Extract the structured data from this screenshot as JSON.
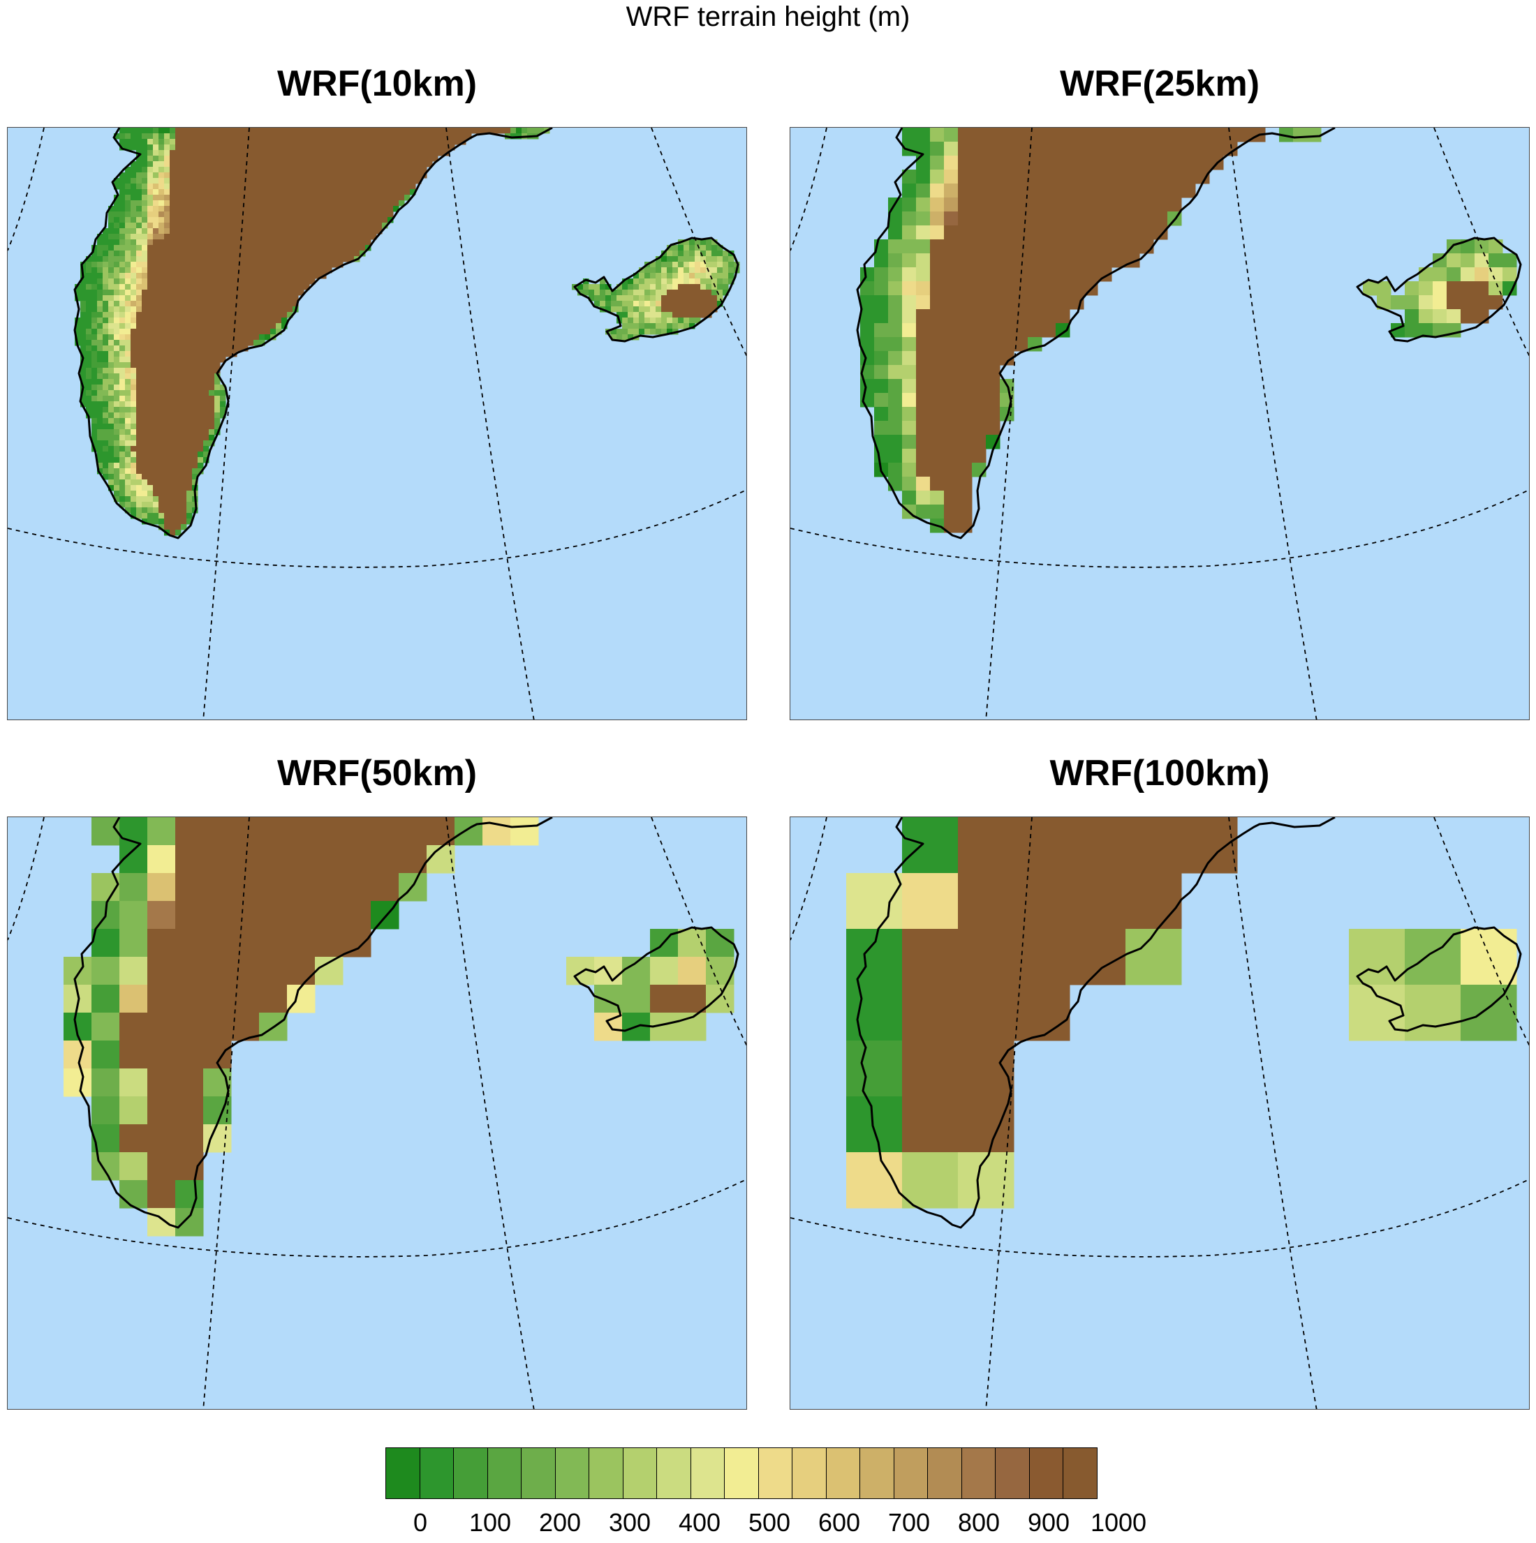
{
  "title": "WRF terrain height (m)",
  "panels": [
    {
      "title": "WRF(10km)",
      "pixel_size": 8
    },
    {
      "title": "WRF(25km)",
      "pixel_size": 20
    },
    {
      "title": "WRF(50km)",
      "pixel_size": 40
    },
    {
      "title": "WRF(100km)",
      "pixel_size": 80
    }
  ],
  "colorbar": {
    "colors": [
      "#1e8a1e",
      "#2d962d",
      "#459e37",
      "#5aa641",
      "#6eae4b",
      "#82b955",
      "#9bc45f",
      "#b4d06e",
      "#cbdc80",
      "#dde48e",
      "#f2ed93",
      "#eedb8a",
      "#e6cf7e",
      "#dbc172",
      "#cdb068",
      "#c09e5e",
      "#b28c54",
      "#a4784a",
      "#966740",
      "#8a5a30",
      "#875a2f"
    ],
    "labels": [
      "0",
      "100",
      "200",
      "300",
      "400",
      "500",
      "600",
      "700",
      "800",
      "900",
      "1000"
    ],
    "ocean_color": "#b4dbfa",
    "ice_color": "#875a2f"
  }
}
